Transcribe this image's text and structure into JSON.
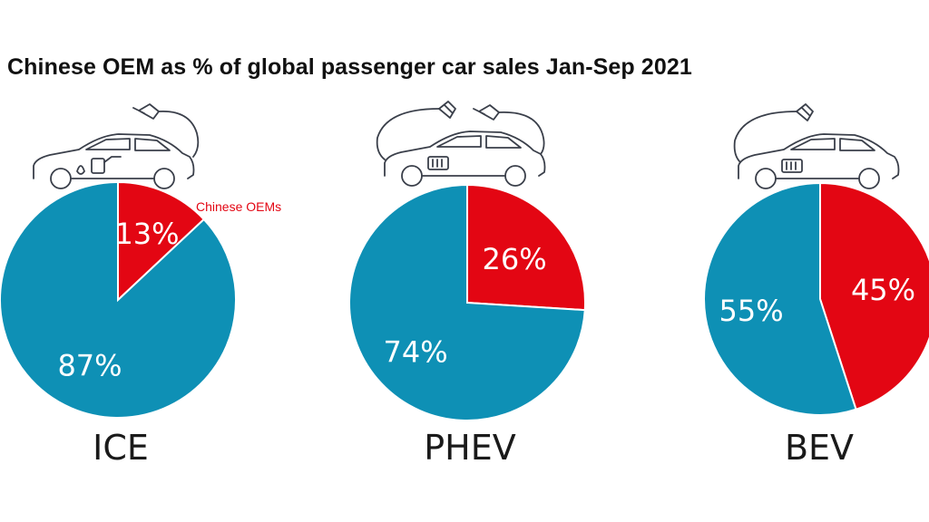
{
  "chart_data": {
    "type": "pie",
    "title": "Chinese OEM as % of global passenger car sales Jan-Sep 2021",
    "series_annotation": "Chinese OEMs",
    "colors": {
      "chinese_oems": "#e30613",
      "other": "#0e90b5"
    },
    "charts": [
      {
        "category": "ICE",
        "icon": "car-fuel-pump-icon",
        "slices": [
          {
            "label": "13%",
            "value": 13,
            "color": "#e30613"
          },
          {
            "label": "87%",
            "value": 87,
            "color": "#0e90b5"
          }
        ]
      },
      {
        "category": "PHEV",
        "icon": "car-plug-and-fuel-pump-icon",
        "slices": [
          {
            "label": "26%",
            "value": 26,
            "color": "#e30613"
          },
          {
            "label": "74%",
            "value": 74,
            "color": "#0e90b5"
          }
        ]
      },
      {
        "category": "BEV",
        "icon": "car-plug-battery-icon",
        "slices": [
          {
            "label": "45%",
            "value": 45,
            "color": "#e30613"
          },
          {
            "label": "55%",
            "value": 55,
            "color": "#0e90b5"
          }
        ]
      }
    ]
  }
}
